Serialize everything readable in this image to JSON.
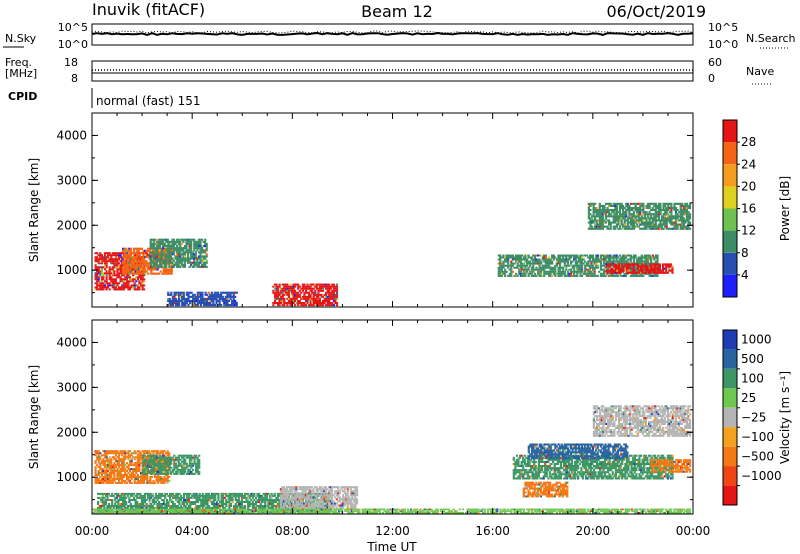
{
  "header": {
    "station": "Inuvik (fitACF)",
    "beam": "Beam 12",
    "date": "06/Oct/2019"
  },
  "status_panels": {
    "nsky_label": "N.Sky",
    "nsky_ticks": [
      "10^5",
      "10^0"
    ],
    "nsearch_label": "N.Search",
    "nsearch_ticks": [
      "10^5",
      "10^0"
    ],
    "freq_label_1": "Freq.",
    "freq_label_2": "[MHz]",
    "freq_ticks": [
      "18",
      "8"
    ],
    "nave_label": "Nave",
    "nave_ticks": [
      "60",
      "0"
    ],
    "cpid_label": "CPID",
    "cpid_text": "normal (fast) 151"
  },
  "chart_data": [
    {
      "type": "heatmap",
      "name": "power",
      "ylabel": "Slant Range [km]",
      "ylim": [
        180,
        4500
      ],
      "yticks": [
        "1000",
        "2000",
        "3000",
        "4000"
      ],
      "colorbar_label": "Power [dB]",
      "colorbar_ticks": [
        "4",
        "8",
        "12",
        "16",
        "20",
        "24",
        "28"
      ],
      "colors": [
        "#1e1eff",
        "#2850b4",
        "#3c8c64",
        "#6ec050",
        "#dcd21e",
        "#f59b1e",
        "#f56414",
        "#e61414"
      ],
      "regions": [
        {
          "t0": 0.1,
          "t1": 2.1,
          "r0": 550,
          "r1": 1400,
          "color": "#e61414"
        },
        {
          "t0": 1.2,
          "t1": 3.2,
          "r0": 900,
          "r1": 1500,
          "color": "#f56414"
        },
        {
          "t0": 2.3,
          "t1": 4.6,
          "r0": 1050,
          "r1": 1700,
          "color": "#3c8c64"
        },
        {
          "t0": 3.0,
          "t1": 5.8,
          "r0": 200,
          "r1": 520,
          "color": "#2850b4"
        },
        {
          "t0": 7.2,
          "t1": 9.8,
          "r0": 200,
          "r1": 700,
          "color": "#e61414"
        },
        {
          "t0": 16.2,
          "t1": 22.6,
          "r0": 850,
          "r1": 1350,
          "color": "#3c8c64"
        },
        {
          "t0": 20.5,
          "t1": 23.2,
          "r0": 920,
          "r1": 1150,
          "color": "#e61414"
        },
        {
          "t0": 19.8,
          "t1": 23.9,
          "r0": 1900,
          "r1": 2500,
          "color": "#3c8c64"
        }
      ]
    },
    {
      "type": "heatmap",
      "name": "velocity",
      "ylabel": "Slant Range [km]",
      "ylim": [
        180,
        4500
      ],
      "yticks": [
        "1000",
        "2000",
        "3000",
        "4000"
      ],
      "colorbar_label": "Velocity [m s⁻¹]",
      "colorbar_ticks": [
        "1000",
        "500",
        "100",
        "25",
        "−25",
        "−100",
        "−500",
        "−1000"
      ],
      "colors": [
        "#1e3cb4",
        "#2864a0",
        "#3c9664",
        "#6ec850",
        "#b4b4b4",
        "#f5a01e",
        "#f57814",
        "#f04614",
        "#e61414"
      ],
      "regions": [
        {
          "t0": 0.1,
          "t1": 3.1,
          "r0": 850,
          "r1": 1600,
          "color": "#f57814"
        },
        {
          "t0": 2.0,
          "t1": 4.3,
          "r0": 1050,
          "r1": 1500,
          "color": "#3c9664"
        },
        {
          "t0": 0.2,
          "t1": 9.5,
          "r0": 200,
          "r1": 650,
          "color": "#3c9664"
        },
        {
          "t0": 7.5,
          "t1": 10.6,
          "r0": 300,
          "r1": 800,
          "color": "#b4b4b4"
        },
        {
          "t0": 16.8,
          "t1": 23.2,
          "r0": 950,
          "r1": 1500,
          "color": "#3c9664"
        },
        {
          "t0": 17.4,
          "t1": 21.4,
          "r0": 1400,
          "r1": 1750,
          "color": "#2864a0"
        },
        {
          "t0": 17.2,
          "t1": 19.0,
          "r0": 550,
          "r1": 900,
          "color": "#f57814"
        },
        {
          "t0": 22.3,
          "t1": 23.9,
          "r0": 1100,
          "r1": 1400,
          "color": "#f57814"
        },
        {
          "t0": 20.0,
          "t1": 23.9,
          "r0": 1900,
          "r1": 2600,
          "color": "#b4b4b4"
        },
        {
          "t0": 0.0,
          "t1": 23.9,
          "r0": 190,
          "r1": 300,
          "color": "#6ec850"
        }
      ]
    }
  ],
  "time_axis": {
    "label": "Time UT",
    "ticks": [
      "00:00",
      "04:00",
      "08:00",
      "12:00",
      "16:00",
      "20:00",
      "00:00"
    ]
  }
}
